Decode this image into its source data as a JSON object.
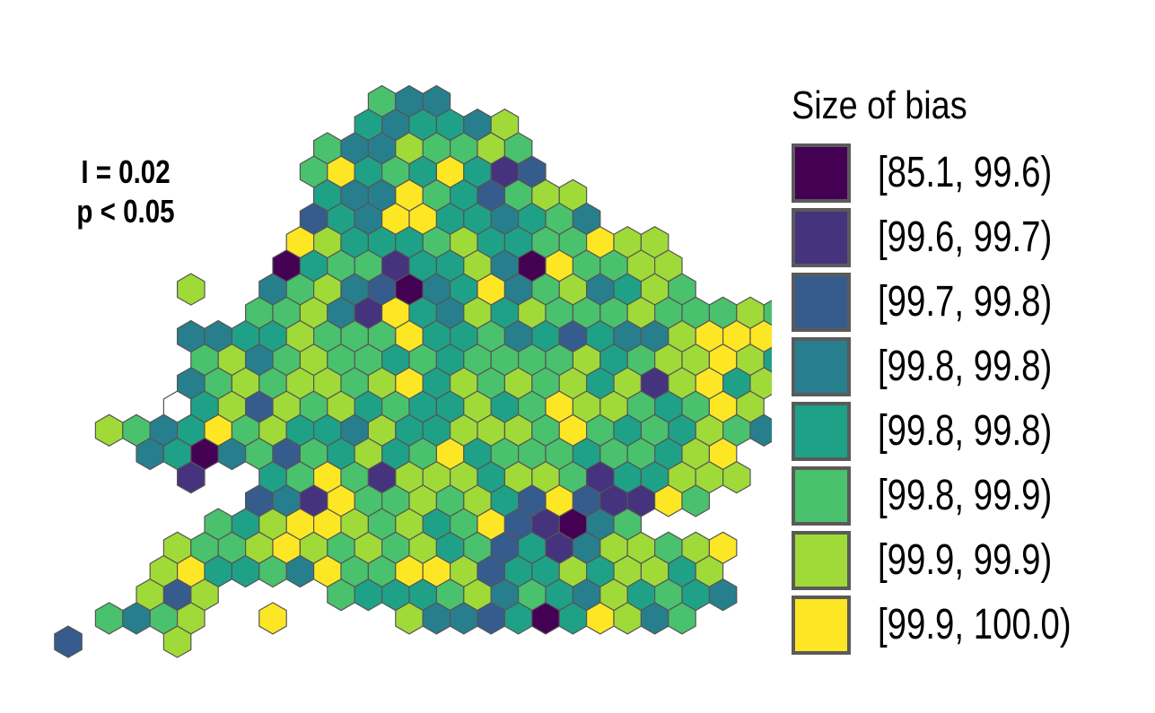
{
  "stats": {
    "line1": "I = 0.02",
    "line2": "p < 0.05"
  },
  "legend": {
    "title": "Size of bias",
    "items": [
      {
        "label": "[85.1, 99.6)",
        "color": "#440154"
      },
      {
        "label": "[99.6, 99.7)",
        "color": "#46337e"
      },
      {
        "label": "[99.7, 99.8)",
        "color": "#365c8d"
      },
      {
        "label": "[99.8, 99.8)",
        "color": "#277f8e"
      },
      {
        "label": "[99.8, 99.8)",
        "color": "#1fa187"
      },
      {
        "label": "[99.8, 99.9)",
        "color": "#4ac16d"
      },
      {
        "label": "[99.9, 99.9)",
        "color": "#a0da39"
      },
      {
        "label": "[99.9, 100.0)",
        "color": "#fde725"
      }
    ]
  },
  "map": {
    "hex_stroke": "#555555",
    "rows": [
      {
        "offset": 0,
        "start": 14,
        "cells": "5 3 3"
      },
      {
        "offset": 1,
        "start": 13,
        "cells": "4 3 4 4 3 6"
      },
      {
        "offset": 0,
        "start": 12,
        "cells": "5 3 3 6 5 5 6 5"
      },
      {
        "offset": 1,
        "start": 11,
        "cells": "5 7 4 5 4 7 4 1 2"
      },
      {
        "offset": 0,
        "start": 12,
        "cells": "4 3 3 7 5 4 2 5 6 6"
      },
      {
        "offset": 1,
        "start": 11,
        "cells": "2 4 3 7 7 4 4 3 4 5 3"
      },
      {
        "offset": 0,
        "start": 11,
        "cells": "7 6 4 4 4 5 6 4 4 5 5 7 6 6"
      },
      {
        "offset": 1,
        "start": 10,
        "cells": "0 4 5 5 1 4 4 6 3 0 7 5 5 6 6"
      },
      {
        "offset": 0,
        "start": 7,
        "cells": "6 . . 3 5 6 3 2 0 3 4 7 3 5 6 3 4 6 5 . . . 6 4"
      },
      {
        "offset": 1,
        "start": 9,
        "cells": "5 5 6 3 1 7 4 3 6 4 6 5 5 5 6 5 5 5 6 5 2 5"
      },
      {
        "offset": 0,
        "start": 7,
        "cells": "3 3 4 4 6 5 5 5 7 4 4 5 3 4 2 4 3 3 6 7 7 7 6"
      },
      {
        "offset": 1,
        "start": 7,
        "cells": "5 6 3 5 6 5 5 4 5 4 5 5 5 5 6 4 5 6 6 7 6 4 5"
      },
      {
        "offset": 0,
        "start": 7,
        "cells": "3 5 6 5 6 6 5 6 7 4 6 5 6 5 6 4 6 1 6 7 4 6"
      },
      {
        "offset": 1,
        "start": 6,
        "cells": "x 4 6 2 6 5 6 4 5 4 4 6 4 5 7 6 6 5 4 5 7 6"
      },
      {
        "offset": 0,
        "start": 4,
        "cells": "6 5 3 4 7 5 6 4 4 3 6 4 4 6 6 6 5 7 5 4 5 4 6 5 3"
      },
      {
        "offset": 1,
        "start": 5,
        "cells": "3 4 0 3 5 2 5 4 6 4 5 7 4 5 5 5 4 5 5 4 6 7"
      },
      {
        "offset": 0,
        "start": 7,
        "cells": "1 . . 4 5 7 5 1 6 6 6 4 6 6 5 1 4 4 6 6 6"
      },
      {
        "offset": 1,
        "start": 9,
        "cells": "2 3 1 7 5 5 6 5 6 4 2 7 2 1 1 7 5"
      },
      {
        "offset": 0,
        "start": 8,
        "cells": "5 4 6 7 7 6 5 6 4 5 7 2 1 0 3 5"
      },
      {
        "offset": 1,
        "start": 6,
        "cells": "6 5 5 6 7 6 5 6 5 6 4 5 2 4 1 3 6 6 5 6 7"
      },
      {
        "offset": 0,
        "start": 6,
        "cells": "6 7 4 4 5 3 7 5 5 7 7 6 2 4 4 6 4 6 6 4 6"
      },
      {
        "offset": 1,
        "start": 5,
        "cells": "6 2 6 . . . . 5 4 4 4 5 6 3 5 4 3 6 4 5 4 3"
      },
      {
        "offset": 0,
        "start": 4,
        "cells": "5 3 5 6 . . 7 . . . . 6 3 3 2 4 0 4 7 6 3 5"
      },
      {
        "offset": 1,
        "start": 2,
        "cells": "2 . . . 6"
      }
    ]
  }
}
